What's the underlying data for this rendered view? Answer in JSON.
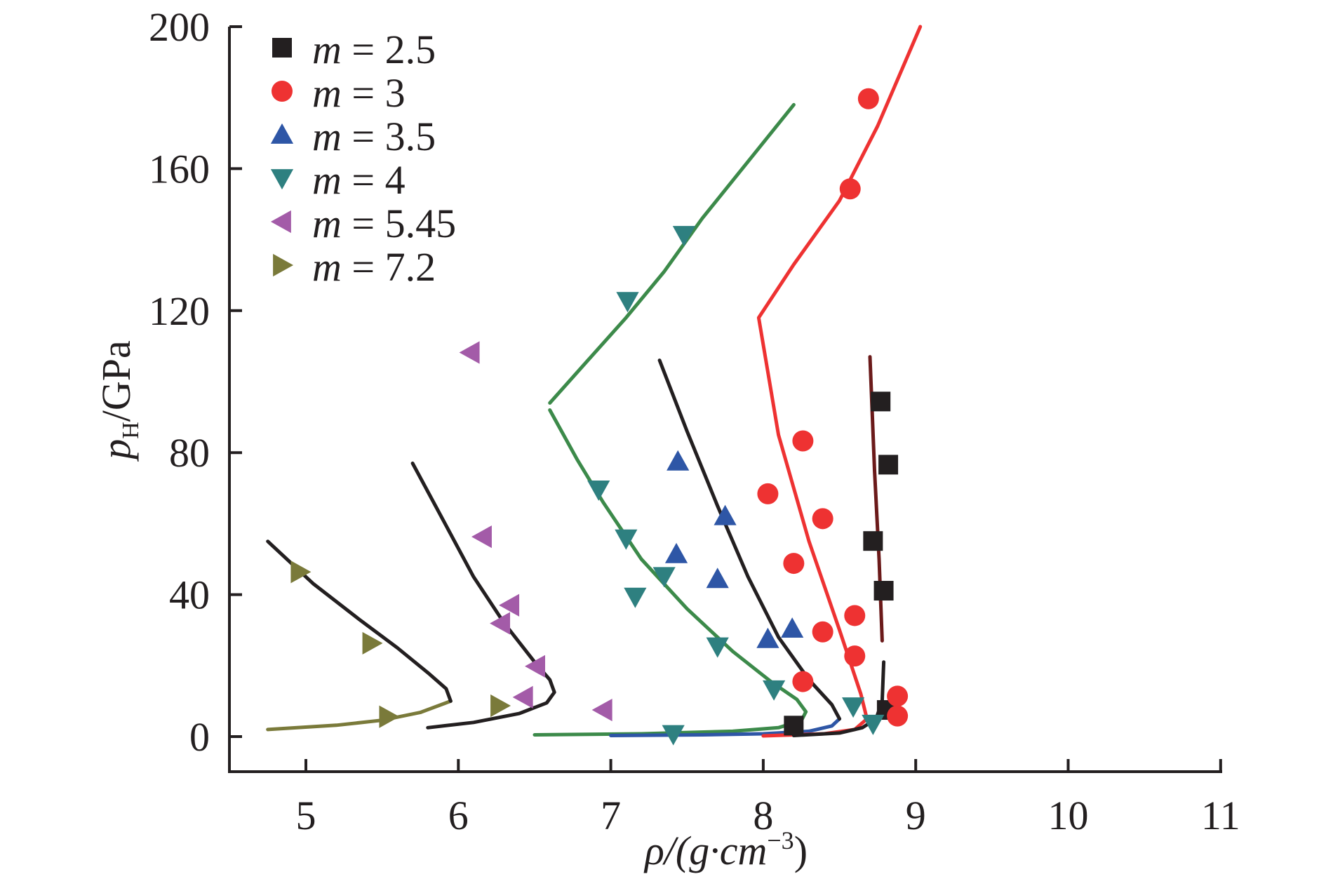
{
  "chart_data": {
    "type": "scatter",
    "title": "",
    "xlabel": "ρ/(g·cm⁻³)",
    "ylabel": "pH/GPa",
    "ylabel_main": "p",
    "ylabel_sub": "H",
    "ylabel_unit": "/GPa",
    "xlabel_main": "ρ/(g·cm",
    "xlabel_sup": "−3",
    "xlabel_close": ")",
    "xlim": [
      4.5,
      11
    ],
    "ylim": [
      -10,
      200
    ],
    "xticks": [
      5,
      6,
      7,
      8,
      9,
      10,
      11
    ],
    "yticks": [
      0,
      40,
      80,
      120,
      160,
      200
    ],
    "xtick_labels": [
      "5",
      "6",
      "7",
      "8",
      "9",
      "10",
      "11"
    ],
    "ytick_labels": [
      "0",
      "40",
      "80",
      "120",
      "160",
      "200"
    ],
    "grid": false,
    "legend_position": "top-left",
    "series": [
      {
        "name": "m = 2.5",
        "m_label": "m",
        "value_label": " = 2.5",
        "marker": "square",
        "color": "#231f20",
        "points": [
          [
            8.77,
            94.4
          ],
          [
            8.82,
            76.6
          ],
          [
            8.72,
            55.1
          ],
          [
            8.79,
            41.1
          ],
          [
            8.81,
            7.5
          ],
          [
            8.2,
            3.1
          ]
        ]
      },
      {
        "name": "m = 3",
        "m_label": "m",
        "value_label": " = 3",
        "marker": "circle",
        "color": "#ee3232",
        "points": [
          [
            8.69,
            179.7
          ],
          [
            8.57,
            154.3
          ],
          [
            8.26,
            83.3
          ],
          [
            8.03,
            68.4
          ],
          [
            8.39,
            61.4
          ],
          [
            8.2,
            48.8
          ],
          [
            8.6,
            34.1
          ],
          [
            8.39,
            29.5
          ],
          [
            8.6,
            22.7
          ],
          [
            8.26,
            15.5
          ],
          [
            8.88,
            11.4
          ],
          [
            8.88,
            5.8
          ]
        ]
      },
      {
        "name": "m = 3.5",
        "m_label": "m",
        "value_label": " = 3.5",
        "marker": "triangle-up",
        "color": "#2e56a6",
        "points": [
          [
            7.44,
            77.5
          ],
          [
            7.75,
            62.1
          ],
          [
            7.43,
            51.4
          ],
          [
            7.7,
            44.4
          ],
          [
            8.19,
            30.4
          ],
          [
            8.03,
            27.5
          ]
        ]
      },
      {
        "name": "m = 4",
        "m_label": "m",
        "value_label": " = 4",
        "marker": "triangle-down",
        "color": "#2e8080",
        "points": [
          [
            7.48,
            141.3
          ],
          [
            7.11,
            122.7
          ],
          [
            6.92,
            69.6
          ],
          [
            7.1,
            55.8
          ],
          [
            7.16,
            39.4
          ],
          [
            7.35,
            45.2
          ],
          [
            7.7,
            25.4
          ],
          [
            8.07,
            13.3
          ],
          [
            8.59,
            8.5
          ],
          [
            8.72,
            3.6
          ],
          [
            7.41,
            0.7
          ]
        ]
      },
      {
        "name": "m = 5.45",
        "m_label": "m",
        "value_label": " = 5.45",
        "marker": "triangle-left",
        "color": "#a35ba8",
        "points": [
          [
            6.08,
            108.2
          ],
          [
            6.16,
            56.3
          ],
          [
            6.34,
            37.0
          ],
          [
            6.28,
            31.9
          ],
          [
            6.51,
            19.8
          ],
          [
            6.43,
            11.1
          ],
          [
            6.95,
            7.5
          ]
        ]
      },
      {
        "name": "m = 7.2",
        "m_label": "m",
        "value_label": " = 7.2",
        "marker": "triangle-right",
        "color": "#7a7a3a",
        "points": [
          [
            4.96,
            46.4
          ],
          [
            5.43,
            26.3
          ],
          [
            5.54,
            5.6
          ],
          [
            6.27,
            8.7
          ]
        ]
      }
    ],
    "curves": [
      {
        "name": "fit-m7.2-lower",
        "color": "#7a7a3a",
        "points": [
          [
            4.75,
            2.0
          ],
          [
            5.2,
            3.2
          ],
          [
            5.5,
            4.6
          ],
          [
            5.75,
            6.8
          ],
          [
            5.95,
            10.0
          ]
        ]
      },
      {
        "name": "fit-m7.2-upper",
        "color": "#231f20",
        "points": [
          [
            5.95,
            10.0
          ],
          [
            5.92,
            13.5
          ],
          [
            5.8,
            18.0
          ],
          [
            5.6,
            25.0
          ],
          [
            5.35,
            33.0
          ],
          [
            5.05,
            43.0
          ],
          [
            4.75,
            55.0
          ]
        ]
      },
      {
        "name": "fit-m5.45",
        "color": "#231f20",
        "points": [
          [
            5.8,
            2.5
          ],
          [
            6.1,
            4.0
          ],
          [
            6.4,
            6.5
          ],
          [
            6.58,
            9.5
          ],
          [
            6.63,
            12.5
          ],
          [
            6.6,
            16.0
          ],
          [
            6.5,
            21.0
          ],
          [
            6.3,
            32.0
          ],
          [
            6.1,
            45.0
          ],
          [
            5.9,
            61.0
          ],
          [
            5.7,
            77.0
          ]
        ]
      },
      {
        "name": "fit-m4-lower",
        "color": "#3c8a4a",
        "points": [
          [
            6.5,
            0.5
          ],
          [
            7.2,
            0.8
          ],
          [
            7.8,
            1.5
          ],
          [
            8.1,
            2.5
          ],
          [
            8.25,
            4.5
          ],
          [
            8.28,
            7.0
          ],
          [
            8.22,
            10.5
          ],
          [
            8.05,
            15.5
          ],
          [
            7.8,
            24.0
          ],
          [
            7.5,
            36.0
          ],
          [
            7.2,
            50.0
          ],
          [
            6.95,
            66.0
          ],
          [
            6.78,
            78.0
          ],
          [
            6.6,
            92.0
          ]
        ]
      },
      {
        "name": "fit-m4-upper",
        "color": "#3c8a4a",
        "points": [
          [
            6.6,
            94.0
          ],
          [
            6.85,
            106.0
          ],
          [
            7.1,
            118.0
          ],
          [
            7.35,
            131.0
          ],
          [
            7.6,
            146.0
          ],
          [
            7.9,
            162.0
          ],
          [
            8.2,
            178.0
          ]
        ]
      },
      {
        "name": "fit-m3.5",
        "color": "#2e56a6",
        "points": [
          [
            7.0,
            0.3
          ],
          [
            7.6,
            0.5
          ],
          [
            8.0,
            0.8
          ],
          [
            8.3,
            1.5
          ],
          [
            8.45,
            3.0
          ],
          [
            8.5,
            5.0
          ]
        ]
      },
      {
        "name": "fit-m3.5-black",
        "color": "#231f20",
        "points": [
          [
            8.5,
            5.0
          ],
          [
            8.45,
            9.0
          ],
          [
            8.3,
            16.0
          ],
          [
            8.1,
            28.0
          ],
          [
            7.9,
            45.0
          ],
          [
            7.7,
            65.0
          ],
          [
            7.5,
            86.0
          ],
          [
            7.32,
            106.0
          ]
        ]
      },
      {
        "name": "fit-m3",
        "color": "#ee3232",
        "points": [
          [
            8.0,
            0.2
          ],
          [
            8.4,
            0.8
          ],
          [
            8.6,
            2.0
          ],
          [
            8.68,
            5.0
          ],
          [
            8.64,
            12.0
          ],
          [
            8.5,
            30.0
          ],
          [
            8.3,
            55.0
          ],
          [
            8.1,
            85.0
          ],
          [
            7.97,
            118.0
          ],
          [
            8.2,
            133.0
          ],
          [
            8.5,
            151.0
          ],
          [
            8.75,
            172.0
          ],
          [
            9.03,
            200.0
          ]
        ]
      },
      {
        "name": "fit-m2.5-lower",
        "color": "#231f20",
        "points": [
          [
            8.2,
            0.3
          ],
          [
            8.5,
            1.0
          ],
          [
            8.65,
            2.5
          ],
          [
            8.74,
            5.0
          ],
          [
            8.78,
            10.0
          ],
          [
            8.79,
            21.0
          ]
        ]
      },
      {
        "name": "fit-m2.5-upper",
        "color": "#6b1a1a",
        "points": [
          [
            8.78,
            27.0
          ],
          [
            8.76,
            50.0
          ],
          [
            8.73,
            75.0
          ],
          [
            8.7,
            107.0
          ]
        ]
      }
    ]
  }
}
